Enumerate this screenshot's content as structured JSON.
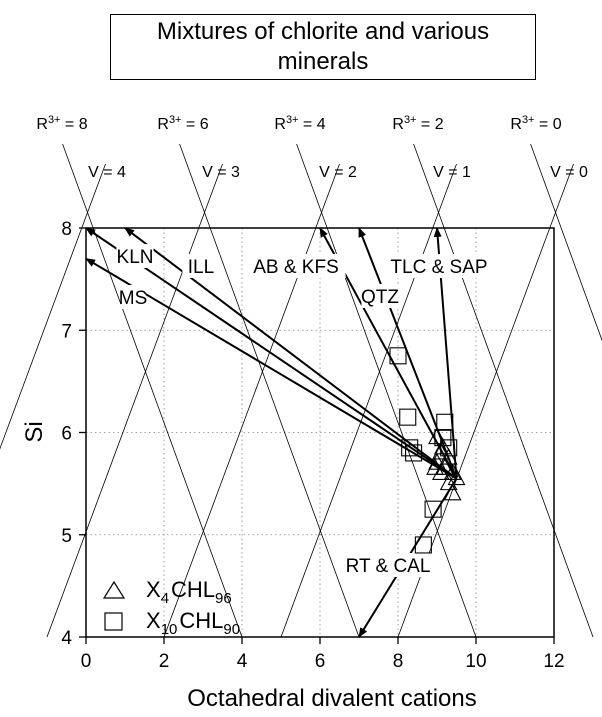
{
  "chart_data": {
    "type": "scatter",
    "title": "Mixtures of chlorite and various minerals",
    "xlabel": "Octahedral divalent cations",
    "ylabel": "Si",
    "xlim": [
      0,
      12
    ],
    "ylim": [
      4,
      8
    ],
    "x_ticks": [
      "0",
      "2",
      "4",
      "6",
      "8",
      "10",
      "12"
    ],
    "y_ticks": [
      "4",
      "5",
      "6",
      "7",
      "8"
    ],
    "grid": "dotted",
    "reference_lines": {
      "r3_labels": [
        "R3+ = 8",
        "R3+ = 6",
        "R3+ = 4",
        "R3+ = 2",
        "R3+ = 0"
      ],
      "v_labels": [
        "V = 4",
        "V = 3",
        "V = 2",
        "V = 1",
        "V = 0"
      ]
    },
    "mineral_vectors": [
      {
        "label": "KLN",
        "from": [
          9.5,
          5.55
        ],
        "to": [
          0.0,
          8.0
        ]
      },
      {
        "label": "MS",
        "from": [
          9.5,
          5.55
        ],
        "to": [
          0.0,
          7.7
        ]
      },
      {
        "label": "ILL",
        "from": [
          9.5,
          5.55
        ],
        "to": [
          1.0,
          8.0
        ]
      },
      {
        "label": "AB & KFS",
        "from": [
          9.5,
          5.55
        ],
        "to": [
          6.0,
          8.0
        ]
      },
      {
        "label": "QTZ",
        "from": [
          9.5,
          5.55
        ],
        "to": [
          7.0,
          8.0
        ]
      },
      {
        "label": "TLC & SAP",
        "from": [
          9.5,
          5.55
        ],
        "to": [
          9.0,
          8.0
        ]
      },
      {
        "label": "RT & CAL",
        "from": [
          9.5,
          5.55
        ],
        "to": [
          7.0,
          4.0
        ]
      }
    ],
    "series": [
      {
        "name": "X4CHL96",
        "marker": "triangle",
        "points": [
          [
            9.0,
            5.95
          ],
          [
            9.15,
            5.85
          ],
          [
            9.3,
            5.75
          ],
          [
            9.0,
            5.7
          ],
          [
            9.1,
            5.6
          ],
          [
            9.2,
            5.65
          ],
          [
            9.4,
            5.6
          ],
          [
            9.5,
            5.55
          ],
          [
            9.3,
            5.5
          ],
          [
            9.4,
            5.4
          ],
          [
            9.1,
            5.8
          ],
          [
            8.95,
            5.65
          ]
        ]
      },
      {
        "name": "X10CHL90",
        "marker": "square",
        "points": [
          [
            8.0,
            6.75
          ],
          [
            8.25,
            6.15
          ],
          [
            8.3,
            5.85
          ],
          [
            8.4,
            5.8
          ],
          [
            9.2,
            6.1
          ],
          [
            9.15,
            5.95
          ],
          [
            9.3,
            5.85
          ],
          [
            8.9,
            5.25
          ],
          [
            8.65,
            4.9
          ]
        ]
      }
    ]
  },
  "legend": {
    "triangle_label": {
      "main": "X",
      "sub1": "4",
      "mid": "CHL",
      "sub2": "96"
    },
    "square_label": {
      "main": "X",
      "sub1": "10",
      "mid": "CHL",
      "sub2": "90"
    }
  }
}
